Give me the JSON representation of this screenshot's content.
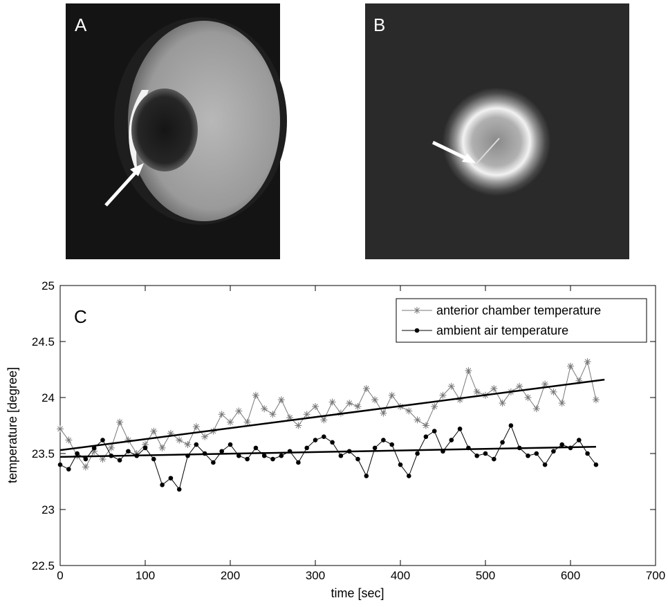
{
  "panels": {
    "a_label": "A",
    "b_label": "B"
  },
  "chart_data": {
    "type": "line",
    "panel_label": "C",
    "xlabel": "time [sec]",
    "ylabel": "temperature [degree]",
    "xlim": [
      0,
      700
    ],
    "ylim": [
      22.5,
      25
    ],
    "xticks": [
      0,
      100,
      200,
      300,
      400,
      500,
      600,
      700
    ],
    "yticks": [
      22.5,
      23,
      23.5,
      24,
      24.5,
      25
    ],
    "legend": "upper right",
    "x": [
      0,
      10,
      20,
      30,
      40,
      50,
      60,
      70,
      80,
      90,
      100,
      110,
      120,
      130,
      140,
      150,
      160,
      170,
      180,
      190,
      200,
      210,
      220,
      230,
      240,
      250,
      260,
      270,
      280,
      290,
      300,
      310,
      320,
      330,
      340,
      350,
      360,
      370,
      380,
      390,
      400,
      410,
      420,
      430,
      440,
      450,
      460,
      470,
      480,
      490,
      500,
      510,
      520,
      530,
      540,
      550,
      560,
      570,
      580,
      590,
      600,
      610,
      620,
      630
    ],
    "series": [
      {
        "name": "anterior chamber temperature",
        "color": "#777777",
        "marker": "asterisk",
        "values": [
          23.72,
          23.62,
          23.48,
          23.38,
          23.52,
          23.45,
          23.55,
          23.78,
          23.62,
          23.5,
          23.58,
          23.7,
          23.55,
          23.68,
          23.62,
          23.58,
          23.74,
          23.65,
          23.7,
          23.85,
          23.78,
          23.88,
          23.78,
          24.02,
          23.9,
          23.85,
          23.98,
          23.82,
          23.75,
          23.85,
          23.92,
          23.8,
          23.96,
          23.86,
          23.95,
          23.92,
          24.08,
          23.98,
          23.86,
          24.02,
          23.92,
          23.88,
          23.8,
          23.75,
          23.92,
          24.02,
          24.1,
          23.98,
          24.24,
          24.05,
          24.02,
          24.08,
          23.95,
          24.05,
          24.1,
          24.0,
          23.9,
          24.12,
          24.05,
          23.95,
          24.28,
          24.15,
          24.32,
          23.98
        ]
      },
      {
        "name": "ambient air temperature",
        "color": "#000000",
        "marker": "dot",
        "values": [
          23.4,
          23.36,
          23.5,
          23.45,
          23.55,
          23.62,
          23.48,
          23.44,
          23.52,
          23.48,
          23.55,
          23.45,
          23.22,
          23.28,
          23.18,
          23.48,
          23.58,
          23.5,
          23.42,
          23.52,
          23.58,
          23.48,
          23.45,
          23.55,
          23.48,
          23.45,
          23.48,
          23.52,
          23.42,
          23.55,
          23.62,
          23.65,
          23.6,
          23.48,
          23.52,
          23.45,
          23.3,
          23.55,
          23.62,
          23.58,
          23.4,
          23.3,
          23.5,
          23.65,
          23.7,
          23.52,
          23.62,
          23.72,
          23.55,
          23.48,
          23.5,
          23.45,
          23.6,
          23.75,
          23.55,
          23.48,
          23.5,
          23.4,
          23.52,
          23.58,
          23.55,
          23.62,
          23.5,
          23.4
        ]
      }
    ],
    "trend_lines": [
      {
        "x": [
          0,
          640
        ],
        "values": [
          23.53,
          24.16
        ],
        "color": "#000000"
      },
      {
        "x": [
          0,
          630
        ],
        "values": [
          23.47,
          23.56
        ],
        "color": "#000000"
      }
    ]
  }
}
